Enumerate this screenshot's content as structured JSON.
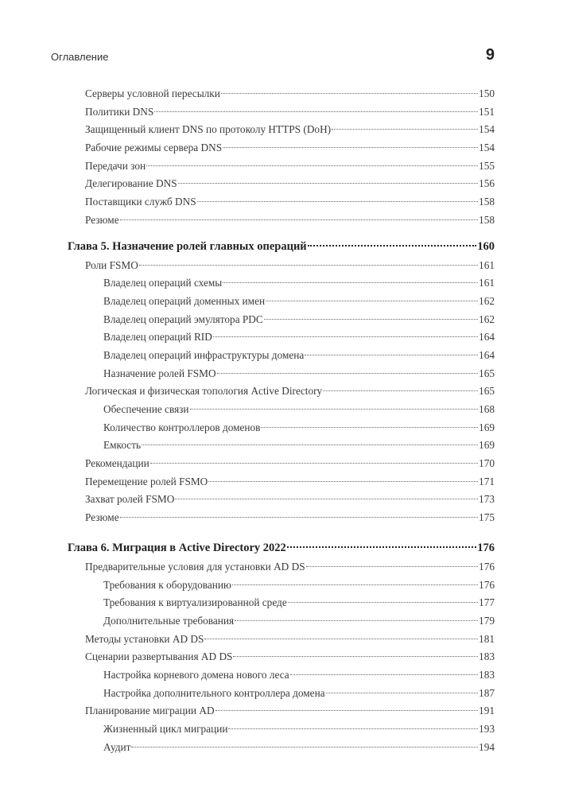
{
  "header": {
    "title": "Оглавление",
    "page_number": "9"
  },
  "entries": [
    {
      "level": 1,
      "title": "Серверы условной пересылки",
      "page": "150"
    },
    {
      "level": 1,
      "title": "Политики DNS",
      "page": "151"
    },
    {
      "level": 1,
      "title": "Защищенный клиент DNS по протоколу HTTPS (DoH)",
      "page": "154"
    },
    {
      "level": 1,
      "title": "Рабочие режимы сервера DNS",
      "page": "154"
    },
    {
      "level": 1,
      "title": "Передачи зон",
      "page": "155"
    },
    {
      "level": 1,
      "title": "Делегирование DNS",
      "page": "156"
    },
    {
      "level": 1,
      "title": "Поставщики служб DNS",
      "page": "158"
    },
    {
      "level": 1,
      "title": "Резюме",
      "page": "158"
    },
    {
      "level": 0,
      "title": "Глава 5. Назначение ролей главных операций",
      "page": "160"
    },
    {
      "level": 1,
      "title": "Роли FSMO",
      "page": "161"
    },
    {
      "level": 2,
      "title": "Владелец операций схемы",
      "page": "161"
    },
    {
      "level": 2,
      "title": "Владелец операций доменных имен",
      "page": "162"
    },
    {
      "level": 2,
      "title": "Владелец операций эмулятора PDC",
      "page": "162"
    },
    {
      "level": 2,
      "title": "Владелец операций RID",
      "page": "164"
    },
    {
      "level": 2,
      "title": "Владелец операций инфраструктуры домена",
      "page": "164"
    },
    {
      "level": 2,
      "title": "Назначение ролей FSMO",
      "page": "165"
    },
    {
      "level": 1,
      "title": "Логическая и физическая топология Active Directory",
      "page": "165"
    },
    {
      "level": 2,
      "title": "Обеспечение связи",
      "page": "168"
    },
    {
      "level": 2,
      "title": "Количество контроллеров доменов",
      "page": "169"
    },
    {
      "level": 2,
      "title": "Емкость",
      "page": "169"
    },
    {
      "level": 1,
      "title": "Рекомендации",
      "page": "170"
    },
    {
      "level": 1,
      "title": "Перемещение ролей FSMO",
      "page": "171"
    },
    {
      "level": 1,
      "title": "Захват ролей FSMO",
      "page": "173"
    },
    {
      "level": 1,
      "title": "Резюме",
      "page": "175"
    },
    {
      "level": 0,
      "title": "Глава 6. Миграция в Active Directory 2022",
      "page": "176"
    },
    {
      "level": 1,
      "title": "Предварительные условия для установки AD DS",
      "page": "176"
    },
    {
      "level": 2,
      "title": "Требования к оборудованию",
      "page": "176"
    },
    {
      "level": 2,
      "title": "Требования к виртуализированной среде",
      "page": "177"
    },
    {
      "level": 2,
      "title": "Дополнительные требования",
      "page": "179"
    },
    {
      "level": 1,
      "title": "Методы установки AD DS",
      "page": "181"
    },
    {
      "level": 1,
      "title": "Сценарии развертывания AD DS",
      "page": "183"
    },
    {
      "level": 2,
      "title": "Настройка корневого домена нового леса",
      "page": "183"
    },
    {
      "level": 2,
      "title": "Настройка дополнительного контроллера домена",
      "page": "187"
    },
    {
      "level": 1,
      "title": "Планирование миграции AD",
      "page": "191"
    },
    {
      "level": 2,
      "title": "Жизненный цикл миграции",
      "page": "193"
    },
    {
      "level": 2,
      "title": "Аудит",
      "page": "194"
    }
  ]
}
